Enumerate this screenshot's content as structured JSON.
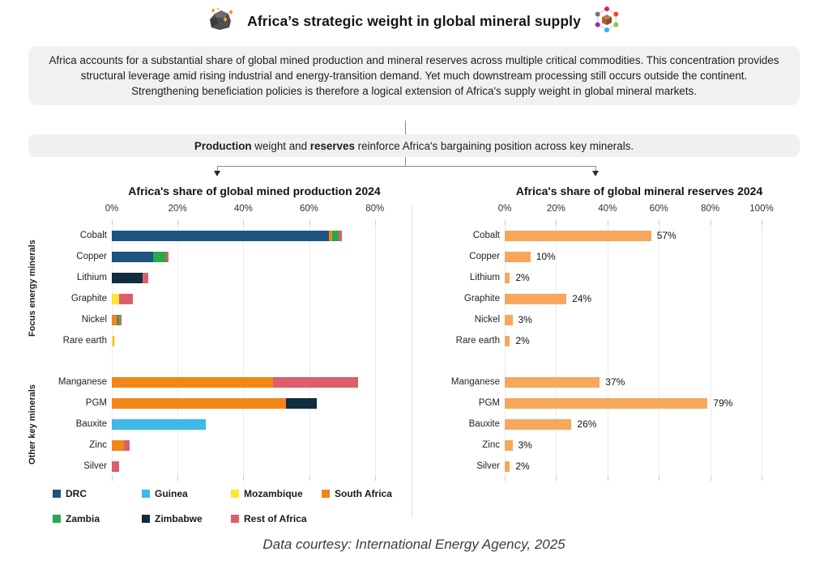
{
  "header": {
    "title": "Africa’s strategic weight in global mineral supply",
    "left_icon": "rock-mineral-icon",
    "right_icon": "mineral-network-icon"
  },
  "intro": {
    "text": "Africa accounts for a substantial share of global mined production and mineral reserves across multiple critical commodities. This concentration provides structural leverage amid rising industrial and energy-transition demand. Yet much downstream processing still occurs outside the continent. Strengthening beneficiation policies is therefore a logical extension of Africa's supply weight in global mineral markets."
  },
  "banner": {
    "part1_bold": "Production",
    "part2": " weight and ",
    "part3_bold": "reserves",
    "part4": " reinforce Africa's bargaining position across key minerals."
  },
  "footer": {
    "text": "Data courtesy: International Energy Agency, 2025"
  },
  "legend": [
    {
      "name": "DRC",
      "color": "#1F5380"
    },
    {
      "name": "Guinea",
      "color": "#3FB9EA"
    },
    {
      "name": "Mozambique",
      "color": "#FFE431"
    },
    {
      "name": "South Africa",
      "color": "#F28618"
    },
    {
      "name": "Zambia",
      "color": "#2AA84C"
    },
    {
      "name": "Zimbabwe",
      "color": "#102C3F"
    },
    {
      "name": "Rest of Africa",
      "color": "#DB5F68"
    }
  ],
  "chart_data": [
    {
      "type": "bar",
      "orientation": "horizontal",
      "stacked": true,
      "unit": "%",
      "title": "Africa's share of global mined production 2024",
      "xlim": [
        0,
        85
      ],
      "tick_labels": [
        "0%",
        "20%",
        "40%",
        "60%",
        "80%"
      ],
      "tick_values": [
        0,
        20,
        40,
        60,
        80
      ],
      "grid": true,
      "groups": [
        {
          "label": "Focus energy minerals",
          "rows": [
            {
              "category": "Cobalt",
              "segments": [
                {
                  "name": "DRC",
                  "value": 66
                },
                {
                  "name": "South Africa",
                  "value": 1
                },
                {
                  "name": "Zambia",
                  "value": 2
                },
                {
                  "name": "Rest of Africa",
                  "value": 1
                }
              ]
            },
            {
              "category": "Copper",
              "segments": [
                {
                  "name": "DRC",
                  "value": 12.5
                },
                {
                  "name": "Zambia",
                  "value": 4
                },
                {
                  "name": "Rest of Africa",
                  "value": 0.8
                }
              ]
            },
            {
              "category": "Lithium",
              "segments": [
                {
                  "name": "Zimbabwe",
                  "value": 9.3
                },
                {
                  "name": "Rest of Africa",
                  "value": 1.7
                }
              ]
            },
            {
              "category": "Graphite",
              "segments": [
                {
                  "name": "Mozambique",
                  "value": 2.2
                },
                {
                  "name": "Rest of Africa",
                  "value": 4.3
                }
              ]
            },
            {
              "category": "Nickel",
              "segments": [
                {
                  "name": "South Africa",
                  "value": 1.6
                },
                {
                  "name": "Zambia",
                  "value": 0.6
                },
                {
                  "name": "Rest of Africa",
                  "value": 0.8
                }
              ]
            },
            {
              "category": "Rare earth",
              "segments": [
                {
                  "name": "Mozambique",
                  "value": 0.4
                },
                {
                  "name": "South Africa",
                  "value": 0.4
                }
              ]
            }
          ]
        },
        {
          "label": "Other key minerals",
          "rows": [
            {
              "category": "Manganese",
              "segments": [
                {
                  "name": "South Africa",
                  "value": 49
                },
                {
                  "name": "Rest of Africa",
                  "value": 26
                }
              ]
            },
            {
              "category": "PGM",
              "segments": [
                {
                  "name": "South Africa",
                  "value": 53
                },
                {
                  "name": "Zimbabwe",
                  "value": 9.3
                }
              ]
            },
            {
              "category": "Bauxite",
              "segments": [
                {
                  "name": "Guinea",
                  "value": 28.5
                }
              ]
            },
            {
              "category": "Zinc",
              "segments": [
                {
                  "name": "South Africa",
                  "value": 3.6
                },
                {
                  "name": "Rest of Africa",
                  "value": 1.8
                }
              ]
            },
            {
              "category": "Silver",
              "segments": [
                {
                  "name": "Rest of Africa",
                  "value": 2.2
                }
              ]
            }
          ]
        }
      ]
    },
    {
      "type": "bar",
      "orientation": "horizontal",
      "stacked": false,
      "unit": "%",
      "title": "Africa's share of global mineral reserves 2024",
      "xlim": [
        0,
        102
      ],
      "tick_labels": [
        "0%",
        "20%",
        "40%",
        "60%",
        "80%",
        "100%"
      ],
      "tick_values": [
        0,
        20,
        40,
        60,
        80,
        100
      ],
      "grid": true,
      "bar_color": "#F6A75C",
      "groups": [
        {
          "label": "",
          "rows": [
            {
              "category": "Cobalt",
              "value": 57,
              "label": "57%"
            },
            {
              "category": "Copper",
              "value": 10,
              "label": "10%"
            },
            {
              "category": "Lithium",
              "value": 2,
              "label": "2%"
            },
            {
              "category": "Graphite",
              "value": 24,
              "label": "24%"
            },
            {
              "category": "Nickel",
              "value": 3,
              "label": "3%"
            },
            {
              "category": "Rare earth",
              "value": 2,
              "label": "2%"
            }
          ]
        },
        {
          "label": "",
          "rows": [
            {
              "category": "Manganese",
              "value": 37,
              "label": "37%"
            },
            {
              "category": "PGM",
              "value": 79,
              "label": "79%"
            },
            {
              "category": "Bauxite",
              "value": 26,
              "label": "26%"
            },
            {
              "category": "Zinc",
              "value": 3,
              "label": "3%"
            },
            {
              "category": "Silver",
              "value": 2,
              "label": "2%"
            }
          ]
        }
      ]
    }
  ]
}
